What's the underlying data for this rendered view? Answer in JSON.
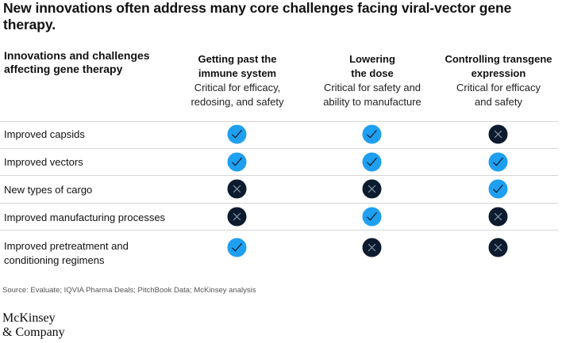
{
  "title": "New innovations often address many core challenges facing viral-vector gene therapy.",
  "row_header": "Innovations and challenges affecting gene therapy",
  "columns": [
    {
      "title_line1": "Getting past the",
      "title_line2": "immune system",
      "sub_line1": "Critical for efficacy,",
      "sub_line2": "redosing, and safety"
    },
    {
      "title_line1": "Lowering",
      "title_line2": "the dose",
      "sub_line1": "Critical for safety and",
      "sub_line2": "ability to manufacture"
    },
    {
      "title_line1": "Controlling transgene",
      "title_line2": "expression",
      "sub_line1": "Critical for efficacy",
      "sub_line2": "and safety"
    }
  ],
  "rows": [
    {
      "label_line1": "Improved capsids",
      "label_line2": "",
      "marks": [
        "check",
        "check",
        "cross"
      ]
    },
    {
      "label_line1": "Improved vectors",
      "label_line2": "",
      "marks": [
        "check",
        "check",
        "check"
      ]
    },
    {
      "label_line1": "New types of cargo",
      "label_line2": "",
      "marks": [
        "cross",
        "cross",
        "check"
      ]
    },
    {
      "label_line1": "Improved manufacturing processes",
      "label_line2": "",
      "marks": [
        "cross",
        "check",
        "cross"
      ]
    },
    {
      "label_line1": "Improved pretreatment and",
      "label_line2": "conditioning regimens",
      "marks": [
        "check",
        "cross",
        "cross"
      ]
    }
  ],
  "colors": {
    "check": "#1f9ff0",
    "cross": "#0d1b2e"
  },
  "source": "Source: Evaluate; IQVIA Pharma Deals; PitchBook Data; McKinsey analysis",
  "logo": {
    "line1": "McKinsey",
    "line2": "& Company"
  }
}
